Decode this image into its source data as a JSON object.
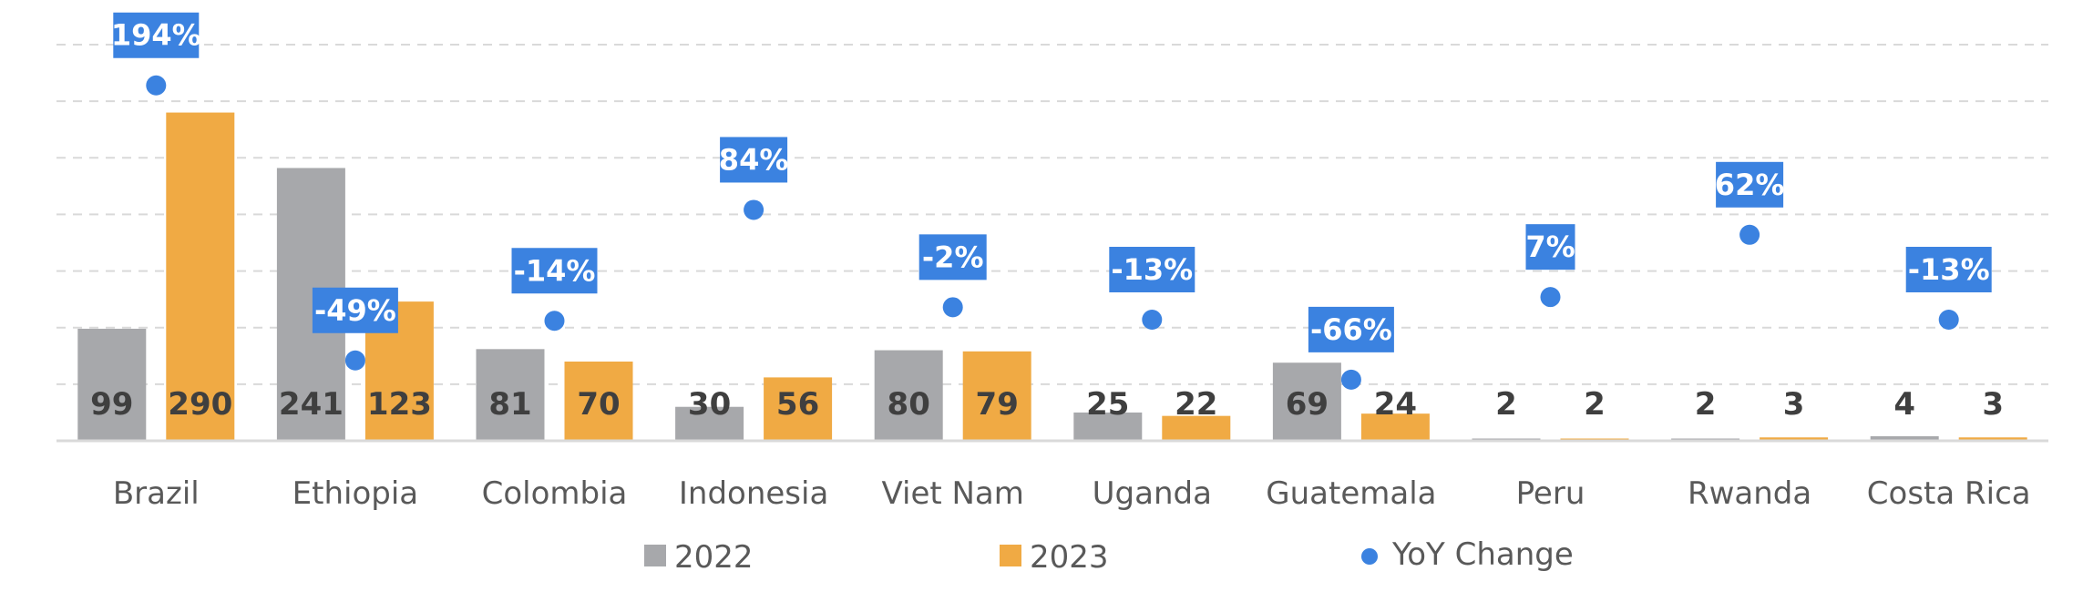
{
  "chart_data": {
    "type": "bar",
    "categories": [
      "Brazil",
      "Ethiopia",
      "Colombia",
      "Indonesia",
      "Viet Nam",
      "Uganda",
      "Guatemala",
      "Peru",
      "Rwanda",
      "Costa Rica"
    ],
    "series": [
      {
        "name": "2022",
        "values": [
          99,
          241,
          81,
          30,
          80,
          25,
          69,
          2,
          2,
          4
        ]
      },
      {
        "name": "2023",
        "values": [
          290,
          123,
          70,
          56,
          79,
          22,
          24,
          2,
          3,
          3
        ]
      }
    ],
    "yoy": {
      "name": "YoY Change",
      "values": [
        194,
        -49,
        -14,
        84,
        -2,
        -13,
        -66,
        7,
        62,
        -13
      ],
      "labels": [
        "194%",
        "-49%",
        "-14%",
        "84%",
        "-2%",
        "-13%",
        "-66%",
        "7%",
        "62%",
        "-13%"
      ]
    },
    "ylim": [
      0,
      350
    ],
    "yoy_lim": [
      -120,
      230
    ],
    "grid": true,
    "legend_position": "bottom",
    "colors": {
      "s2022": "#a7a8ab",
      "s2023": "#f0aa44",
      "yoy": "#3b82e0",
      "value_text": "#3f3f3f",
      "category_text": "#595959",
      "grid": "#d9d9d9",
      "axis": "#d9d9d9",
      "badge_text": "#ffffff"
    }
  }
}
